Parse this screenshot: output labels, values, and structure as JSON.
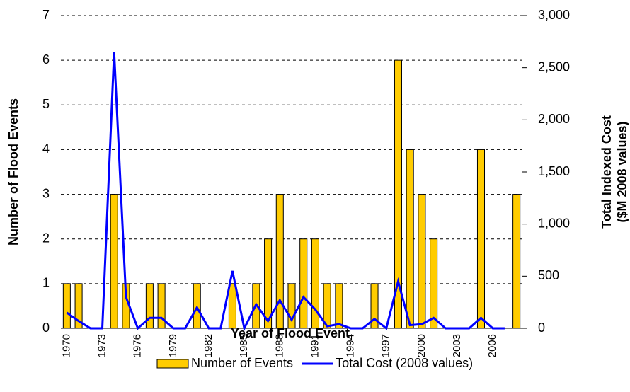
{
  "chart_data": {
    "type": "bar_line",
    "x_label": "Year of Flood Event",
    "y_label": "Number of Flood Events",
    "y2_label": [
      "Total Indexed Cost",
      "($M 2008 values)"
    ],
    "categories": [
      "1970",
      null,
      null,
      "1973",
      null,
      null,
      "1976",
      null,
      null,
      "1979",
      null,
      null,
      "1982",
      null,
      null,
      "1985",
      null,
      null,
      "1988",
      null,
      null,
      "1991",
      null,
      null,
      "1994",
      null,
      null,
      "1997",
      null,
      null,
      "2000",
      null,
      null,
      "2003",
      null,
      null,
      "2006",
      null,
      null
    ],
    "series": [
      {
        "name": "Number of Events",
        "type": "bar",
        "color": "#ffcc00",
        "values": [
          1,
          1,
          0,
          0,
          3,
          1,
          0,
          1,
          1,
          0,
          0,
          1,
          0,
          0,
          1,
          0,
          1,
          2,
          3,
          1,
          2,
          2,
          1,
          1,
          0,
          0,
          1,
          0,
          6,
          4,
          3,
          2,
          0,
          0,
          0,
          4,
          0,
          0,
          3
        ]
      },
      {
        "name": "Total Cost (2008 values)",
        "type": "line",
        "axis": "y2",
        "color": "#0000ff",
        "values": [
          150,
          70,
          0,
          0,
          2650,
          300,
          0,
          100,
          100,
          0,
          0,
          200,
          0,
          0,
          550,
          0,
          230,
          70,
          270,
          80,
          300,
          180,
          20,
          40,
          0,
          0,
          90,
          0,
          450,
          30,
          40,
          100,
          0,
          0,
          0,
          100,
          0,
          0,
          null
        ]
      }
    ],
    "ylim": [
      0,
      7
    ],
    "yticks": [
      0,
      1,
      2,
      3,
      4,
      5,
      6,
      7
    ],
    "y2lim": [
      0,
      3000
    ],
    "y2ticks": [
      0,
      500,
      {
        "value": 1000,
        "label": "1,000"
      },
      {
        "value": 1500,
        "label": "1,500"
      },
      {
        "value": 2000,
        "label": "2,000"
      },
      {
        "value": 2500,
        "label": "2,500"
      },
      {
        "value": 3000,
        "label": "3,000"
      }
    ],
    "grid": true
  }
}
